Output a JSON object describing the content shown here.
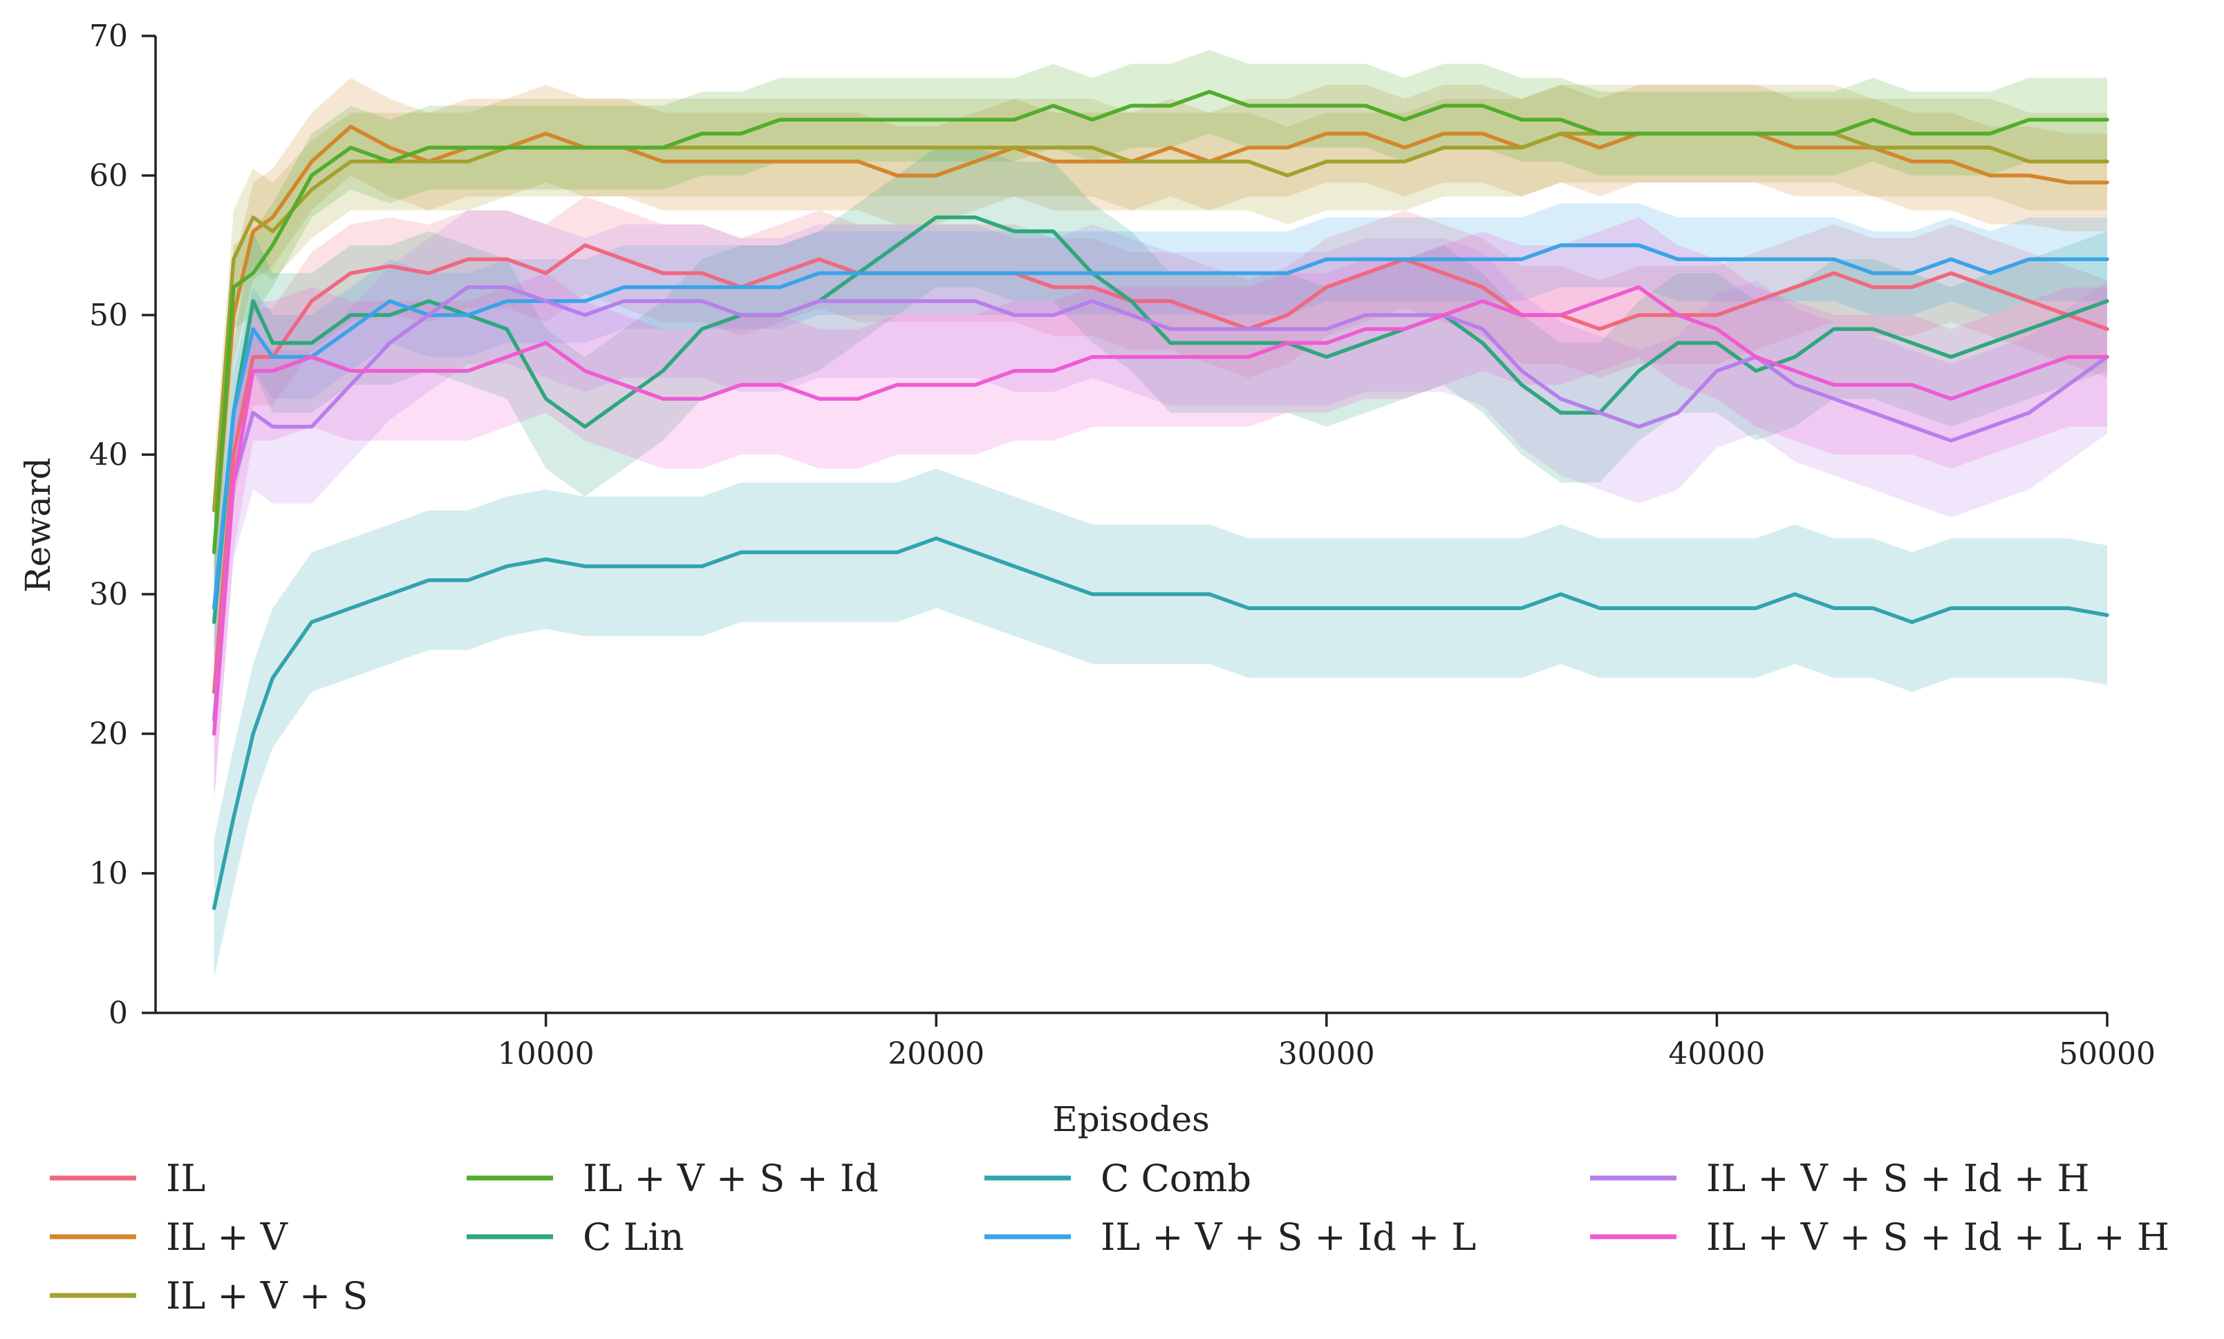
{
  "chart_data": {
    "type": "line",
    "title": "",
    "xlabel": "Episodes",
    "ylabel": "Reward",
    "xlim": [
      0,
      50000
    ],
    "ylim": [
      0,
      70
    ],
    "x_ticks": [
      10000,
      20000,
      30000,
      40000,
      50000
    ],
    "y_ticks": [
      0,
      10,
      20,
      30,
      40,
      50,
      60,
      70
    ],
    "x_tick_labels": [
      "10000",
      "20000",
      "30000",
      "40000",
      "50000"
    ],
    "y_tick_labels": [
      "0",
      "10",
      "20",
      "30",
      "40",
      "50",
      "60",
      "70"
    ],
    "grid": false,
    "legend_position": "below",
    "shaded_band": "confidence interval around each series",
    "x": [
      1500,
      2000,
      2500,
      3000,
      4000,
      5000,
      6000,
      7000,
      8000,
      9000,
      10000,
      11000,
      12000,
      13000,
      14000,
      15000,
      16000,
      17000,
      18000,
      19000,
      20000,
      21000,
      22000,
      23000,
      24000,
      25000,
      26000,
      27000,
      28000,
      29000,
      30000,
      31000,
      32000,
      33000,
      34000,
      35000,
      36000,
      37000,
      38000,
      39000,
      40000,
      41000,
      42000,
      43000,
      44000,
      45000,
      46000,
      47000,
      48000,
      49000,
      50000
    ],
    "series": [
      {
        "name": "IL",
        "color": "#f0687f",
        "band": 3.5,
        "values": [
          23,
          40,
          47,
          47,
          51,
          53,
          53.5,
          53,
          54,
          54,
          53,
          55,
          54,
          53,
          53,
          52,
          53,
          54,
          53,
          53,
          53,
          53,
          53,
          52,
          52,
          51,
          51,
          50,
          49,
          50,
          52,
          53,
          54,
          53,
          52,
          50,
          50,
          49,
          50,
          50,
          50,
          51,
          52,
          53,
          52,
          52,
          53,
          52,
          51,
          50,
          49
        ]
      },
      {
        "name": "IL + V",
        "color": "#d3862c",
        "band": 3.5,
        "values": [
          33,
          50,
          56,
          57,
          61,
          63.5,
          62,
          61,
          62,
          62,
          63,
          62,
          62,
          61,
          61,
          61,
          61,
          61,
          61,
          60,
          60,
          61,
          62,
          61,
          61,
          61,
          62,
          61,
          62,
          62,
          63,
          63,
          62,
          63,
          63,
          62,
          63,
          62,
          63,
          63,
          63,
          63,
          62,
          62,
          62,
          61,
          61,
          60,
          60,
          59.5,
          59.5
        ]
      },
      {
        "name": "IL + V + S",
        "color": "#a3a12f",
        "band": 3.5,
        "values": [
          36,
          54,
          57,
          56,
          59,
          61,
          61,
          61,
          61,
          62,
          62,
          62,
          62,
          62,
          62,
          62,
          62,
          62,
          62,
          62,
          62,
          62,
          62,
          62,
          62,
          61,
          61,
          61,
          61,
          60,
          61,
          61,
          61,
          62,
          62,
          62,
          63,
          63,
          63,
          63,
          63,
          63,
          63,
          63,
          62,
          62,
          62,
          62,
          61,
          61,
          61
        ]
      },
      {
        "name": "IL + V + S + Id",
        "color": "#51ad2d",
        "band": 3,
        "values": [
          33,
          52,
          53,
          55,
          60,
          62,
          61,
          62,
          62,
          62,
          62,
          62,
          62,
          62,
          63,
          63,
          64,
          64,
          64,
          64,
          64,
          64,
          64,
          65,
          64,
          65,
          65,
          66,
          65,
          65,
          65,
          65,
          64,
          65,
          65,
          64,
          64,
          63,
          63,
          63,
          63,
          63,
          63,
          63,
          64,
          63,
          63,
          63,
          64,
          64,
          64
        ]
      },
      {
        "name": "C Lin",
        "color": "#2fa77e",
        "band": 5,
        "values": [
          28,
          43,
          51,
          48,
          48,
          50,
          50,
          51,
          50,
          49,
          44,
          42,
          44,
          46,
          49,
          50,
          50,
          51,
          53,
          55,
          57,
          57,
          56,
          56,
          53,
          51,
          48,
          48,
          48,
          48,
          47,
          48,
          49,
          50,
          48,
          45,
          43,
          43,
          46,
          48,
          48,
          46,
          47,
          49,
          49,
          48,
          47,
          48,
          49,
          50,
          51
        ]
      },
      {
        "name": "C Comb",
        "color": "#31a4ad",
        "band": 5,
        "values": [
          7.5,
          14,
          20,
          24,
          28,
          29,
          30,
          31,
          31,
          32,
          32.5,
          32,
          32,
          32,
          32,
          33,
          33,
          33,
          33,
          33,
          34,
          33,
          32,
          31,
          30,
          30,
          30,
          30,
          29,
          29,
          29,
          29,
          29,
          29,
          29,
          29,
          30,
          29,
          29,
          29,
          29,
          29,
          30,
          29,
          29,
          28,
          29,
          29,
          29,
          29,
          28.5
        ]
      },
      {
        "name": "IL + V + S + Id + L",
        "color": "#3ba3e8",
        "band": 3,
        "values": [
          29,
          43,
          49,
          47,
          47,
          49,
          51,
          50,
          50,
          51,
          51,
          51,
          52,
          52,
          52,
          52,
          52,
          53,
          53,
          53,
          53,
          53,
          53,
          53,
          53,
          53,
          53,
          53,
          53,
          53,
          54,
          54,
          54,
          54,
          54,
          54,
          55,
          55,
          55,
          54,
          54,
          54,
          54,
          54,
          53,
          53,
          54,
          53,
          54,
          54,
          54
        ]
      },
      {
        "name": "IL + V + S + Id + H",
        "color": "#b77fec",
        "band": 5.5,
        "values": [
          21,
          38,
          43,
          42,
          42,
          45,
          48,
          50,
          52,
          52,
          51,
          50,
          51,
          51,
          51,
          50,
          50,
          51,
          51,
          51,
          51,
          51,
          50,
          50,
          51,
          50,
          49,
          49,
          49,
          49,
          49,
          50,
          50,
          50,
          49,
          46,
          44,
          43,
          42,
          43,
          46,
          47,
          45,
          44,
          43,
          42,
          41,
          42,
          43,
          45,
          47
        ]
      },
      {
        "name": "IL + V + S + Id + L + H",
        "color": "#ef5bd1",
        "band": 5,
        "values": [
          20,
          38,
          46,
          46,
          47,
          46,
          46,
          46,
          46,
          47,
          48,
          46,
          45,
          44,
          44,
          45,
          45,
          44,
          44,
          45,
          45,
          45,
          46,
          46,
          47,
          47,
          47,
          47,
          47,
          48,
          48,
          49,
          49,
          50,
          51,
          50,
          50,
          51,
          52,
          50,
          49,
          47,
          46,
          45,
          45,
          45,
          44,
          45,
          46,
          47,
          47
        ]
      }
    ]
  }
}
